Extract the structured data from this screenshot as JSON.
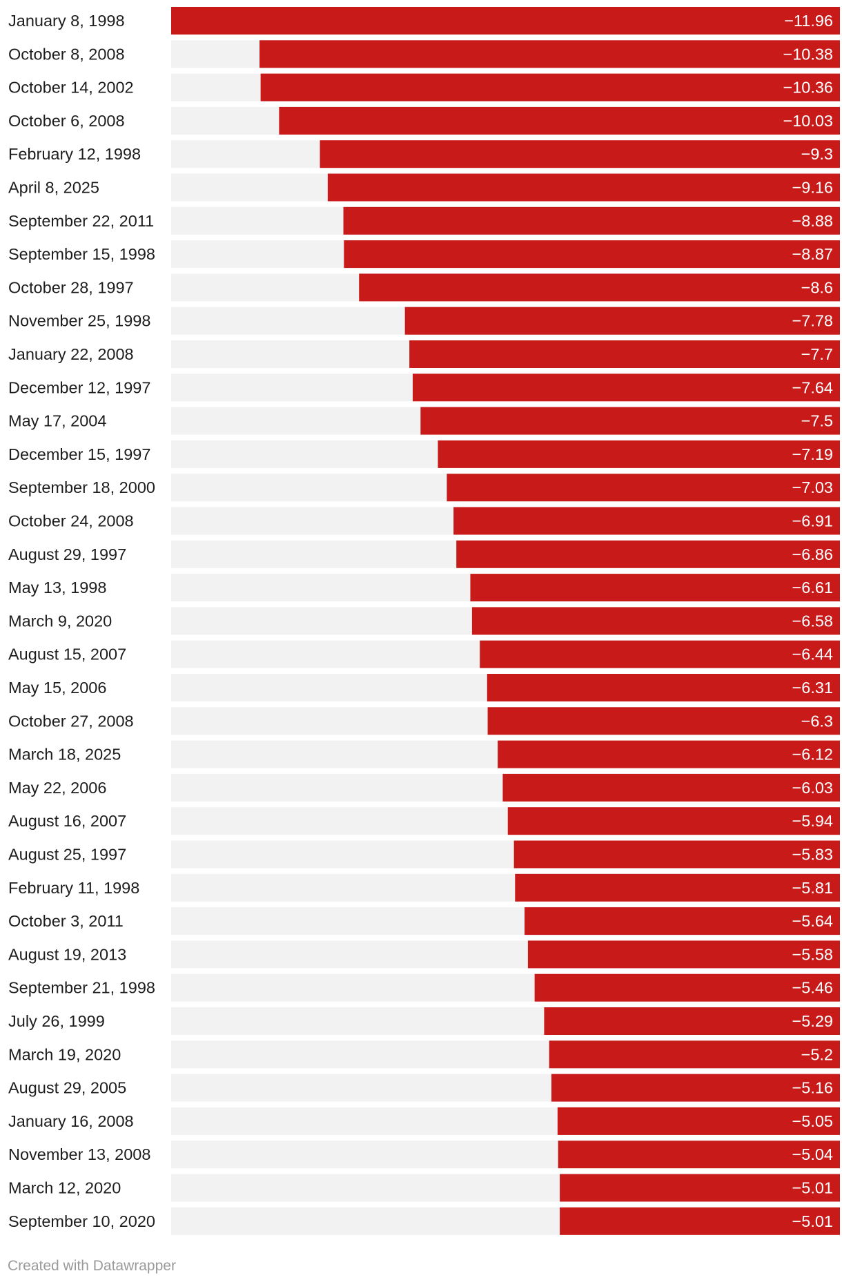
{
  "chart_data": {
    "type": "bar",
    "orientation": "horizontal",
    "title": "",
    "xlabel": "",
    "ylabel": "",
    "xlim": [
      -11.96,
      0
    ],
    "colors": {
      "bar": "#c91a1a",
      "track": "#f2f2f2"
    },
    "categories": [
      "January 8, 1998",
      "October 8, 2008",
      "October 14, 2002",
      "October 6, 2008",
      "February 12, 1998",
      "April 8, 2025",
      "September 22, 2011",
      "September 15, 1998",
      "October 28, 1997",
      "November 25, 1998",
      "January 22, 2008",
      "December 12, 1997",
      "May 17, 2004",
      "December 15, 1997",
      "September 18, 2000",
      "October 24, 2008",
      "August 29, 1997",
      "May 13, 1998",
      "March 9, 2020",
      "August 15, 2007",
      "May 15, 2006",
      "October 27, 2008",
      "March 18, 2025",
      "May 22, 2006",
      "August 16, 2007",
      "August 25, 1997",
      "February 11, 1998",
      "October 3, 2011",
      "August 19, 2013",
      "September 21, 1998",
      "July 26, 1999",
      "March 19, 2020",
      "August 29, 2005",
      "January 16, 2008",
      "November 13, 2008",
      "March 12, 2020",
      "September 10, 2020"
    ],
    "values": [
      -11.96,
      -10.38,
      -10.36,
      -10.03,
      -9.3,
      -9.16,
      -8.88,
      -8.87,
      -8.6,
      -7.78,
      -7.7,
      -7.64,
      -7.5,
      -7.19,
      -7.03,
      -6.91,
      -6.86,
      -6.61,
      -6.58,
      -6.44,
      -6.31,
      -6.3,
      -6.12,
      -6.03,
      -5.94,
      -5.83,
      -5.81,
      -5.64,
      -5.58,
      -5.46,
      -5.29,
      -5.2,
      -5.16,
      -5.05,
      -5.04,
      -5.01,
      -5.01
    ],
    "value_labels": [
      "−11.96",
      "−10.38",
      "−10.36",
      "−10.03",
      "−9.3",
      "−9.16",
      "−8.88",
      "−8.87",
      "−8.6",
      "−7.78",
      "−7.7",
      "−7.64",
      "−7.5",
      "−7.19",
      "−7.03",
      "−6.91",
      "−6.86",
      "−6.61",
      "−6.58",
      "−6.44",
      "−6.31",
      "−6.3",
      "−6.12",
      "−6.03",
      "−5.94",
      "−5.83",
      "−5.81",
      "−5.64",
      "−5.58",
      "−5.46",
      "−5.29",
      "−5.2",
      "−5.16",
      "−5.05",
      "−5.04",
      "−5.01",
      "−5.01"
    ]
  },
  "footer": {
    "credit": "Created with Datawrapper"
  }
}
